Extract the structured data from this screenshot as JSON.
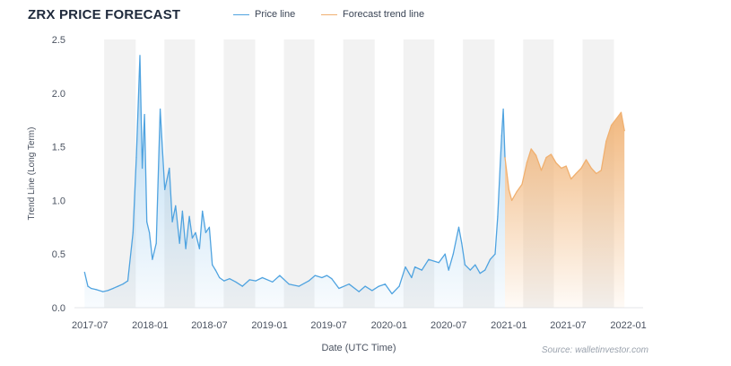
{
  "header": {
    "title": "ZRX PRICE FORECAST",
    "legend_price": "Price line",
    "legend_forecast": "Forecast trend line"
  },
  "footer": {
    "source": "Source: walletinvestor.com"
  },
  "colors": {
    "price": "#4fa3e0",
    "forecast": "#f0b070",
    "band": "#f2f2f2",
    "axis": "#e3e6ea"
  },
  "chart_data": {
    "type": "area",
    "title": "ZRX PRICE FORECAST",
    "xlabel": "Date (UTC Time)",
    "ylabel": "Trend Line (Long Term)",
    "x_ticks": [
      "2017-07",
      "2018-01",
      "2018-07",
      "2019-01",
      "2019-07",
      "2020-01",
      "2020-07",
      "2021-01",
      "2021-07",
      "2022-01"
    ],
    "y_ticks": [
      0.0,
      0.5,
      1.0,
      1.5,
      2.0,
      2.5
    ],
    "ylim": [
      0,
      2.5
    ],
    "xlim": [
      "2017-05-15",
      "2022-02-15"
    ],
    "grid": "alternating vertical bands",
    "series": [
      {
        "name": "Price line",
        "x": [
          "2017-06-15",
          "2017-06-25",
          "2017-07-05",
          "2017-07-20",
          "2017-08-10",
          "2017-08-25",
          "2017-09-10",
          "2017-09-25",
          "2017-10-10",
          "2017-10-25",
          "2017-11-10",
          "2017-11-20",
          "2017-12-01",
          "2017-12-08",
          "2017-12-15",
          "2017-12-22",
          "2017-12-30",
          "2018-01-08",
          "2018-01-20",
          "2018-02-01",
          "2018-02-15",
          "2018-03-01",
          "2018-03-10",
          "2018-03-20",
          "2018-04-01",
          "2018-04-10",
          "2018-04-20",
          "2018-05-01",
          "2018-05-10",
          "2018-05-20",
          "2018-06-01",
          "2018-06-10",
          "2018-06-20",
          "2018-07-01",
          "2018-07-10",
          "2018-07-20",
          "2018-08-01",
          "2018-08-15",
          "2018-09-01",
          "2018-09-20",
          "2018-10-10",
          "2018-11-01",
          "2018-11-20",
          "2018-12-10",
          "2019-01-10",
          "2019-02-01",
          "2019-03-01",
          "2019-04-01",
          "2019-05-01",
          "2019-05-20",
          "2019-06-10",
          "2019-06-25",
          "2019-07-10",
          "2019-08-01",
          "2019-09-01",
          "2019-10-01",
          "2019-10-20",
          "2019-11-10",
          "2019-12-01",
          "2019-12-20",
          "2020-01-10",
          "2020-02-01",
          "2020-02-20",
          "2020-03-10",
          "2020-03-20",
          "2020-04-10",
          "2020-05-01",
          "2020-06-01",
          "2020-06-20",
          "2020-07-01",
          "2020-07-15",
          "2020-08-01",
          "2020-08-10",
          "2020-08-20",
          "2020-09-05",
          "2020-09-20",
          "2020-10-05",
          "2020-10-20",
          "2020-11-05",
          "2020-11-20",
          "2020-11-28",
          "2020-12-05",
          "2020-12-10",
          "2020-12-15",
          "2020-12-20"
        ],
        "values": [
          0.33,
          0.2,
          0.18,
          0.17,
          0.15,
          0.16,
          0.18,
          0.2,
          0.22,
          0.25,
          0.7,
          1.4,
          2.35,
          1.3,
          1.8,
          0.8,
          0.7,
          0.45,
          0.6,
          1.85,
          1.1,
          1.3,
          0.8,
          0.95,
          0.6,
          0.9,
          0.55,
          0.85,
          0.65,
          0.7,
          0.55,
          0.9,
          0.7,
          0.75,
          0.4,
          0.35,
          0.28,
          0.25,
          0.27,
          0.24,
          0.2,
          0.26,
          0.25,
          0.28,
          0.24,
          0.3,
          0.22,
          0.2,
          0.25,
          0.3,
          0.28,
          0.3,
          0.27,
          0.18,
          0.22,
          0.15,
          0.2,
          0.16,
          0.2,
          0.22,
          0.13,
          0.2,
          0.38,
          0.28,
          0.38,
          0.35,
          0.45,
          0.42,
          0.5,
          0.35,
          0.5,
          0.75,
          0.6,
          0.4,
          0.35,
          0.4,
          0.32,
          0.35,
          0.45,
          0.5,
          0.85,
          1.3,
          1.6,
          1.85,
          1.4
        ]
      },
      {
        "name": "Forecast trend line",
        "x": [
          "2020-12-20",
          "2021-01-01",
          "2021-01-10",
          "2021-01-25",
          "2021-02-10",
          "2021-02-25",
          "2021-03-10",
          "2021-03-25",
          "2021-04-10",
          "2021-04-25",
          "2021-05-10",
          "2021-05-25",
          "2021-06-10",
          "2021-06-25",
          "2021-07-10",
          "2021-07-25",
          "2021-08-10",
          "2021-08-25",
          "2021-09-10",
          "2021-09-25",
          "2021-10-10",
          "2021-10-25",
          "2021-11-10",
          "2021-11-25",
          "2021-12-10",
          "2021-12-20"
        ],
        "values": [
          1.4,
          1.1,
          1.0,
          1.08,
          1.15,
          1.35,
          1.48,
          1.42,
          1.28,
          1.4,
          1.43,
          1.35,
          1.3,
          1.32,
          1.2,
          1.25,
          1.3,
          1.38,
          1.3,
          1.25,
          1.28,
          1.55,
          1.7,
          1.76,
          1.82,
          1.65
        ]
      }
    ]
  }
}
